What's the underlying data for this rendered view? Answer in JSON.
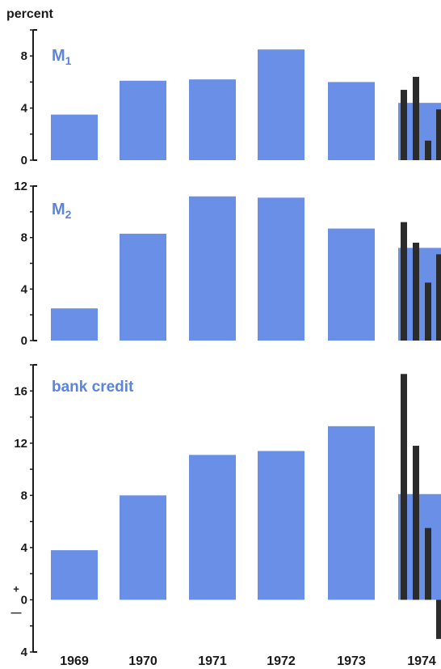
{
  "chart_data": {
    "type": "bar",
    "unit_label": "percent",
    "categories": [
      "1969",
      "1970",
      "1971",
      "1972",
      "1973",
      "1974"
    ],
    "colors": {
      "annual": "#6a8fe6",
      "quarterly": "#2b2b2b",
      "label": "#5b84df",
      "axis": "#1a1a1a"
    },
    "panels": [
      {
        "label": "M",
        "label_subscript": "1",
        "ylim": [
          0,
          10
        ],
        "yticks": [
          {
            "v": 0,
            "t": "0"
          },
          {
            "v": 4,
            "t": "4"
          },
          {
            "v": 8,
            "t": "8"
          }
        ],
        "values": [
          3.5,
          6.1,
          6.2,
          8.5,
          6.0,
          4.4
        ],
        "quarterly_1974": [
          5.4,
          6.4,
          1.5,
          3.9
        ]
      },
      {
        "label": "M",
        "label_subscript": "2",
        "ylim": [
          0,
          12
        ],
        "yticks": [
          {
            "v": 0,
            "t": "0"
          },
          {
            "v": 4,
            "t": "4"
          },
          {
            "v": 8,
            "t": "8"
          },
          {
            "v": 12,
            "t": "12"
          }
        ],
        "values": [
          2.5,
          8.3,
          11.2,
          11.1,
          8.7,
          7.2
        ],
        "quarterly_1974": [
          9.2,
          7.6,
          4.5,
          6.7
        ]
      },
      {
        "label": "bank credit",
        "label_subscript": "",
        "ylim": [
          -4,
          18
        ],
        "yticks": [
          {
            "v": 16,
            "t": "16"
          },
          {
            "v": 12,
            "t": "12"
          },
          {
            "v": 8,
            "t": "8"
          },
          {
            "v": 4,
            "t": "4"
          },
          {
            "v": 0,
            "t": "0"
          },
          {
            "v": -4,
            "t": "4"
          }
        ],
        "sign_marks": {
          "plus": "+",
          "minus": "—"
        },
        "values": [
          3.8,
          8.0,
          11.1,
          11.4,
          13.3,
          8.1
        ],
        "quarterly_1974": [
          17.3,
          11.8,
          5.5,
          -3.0
        ]
      }
    ]
  }
}
